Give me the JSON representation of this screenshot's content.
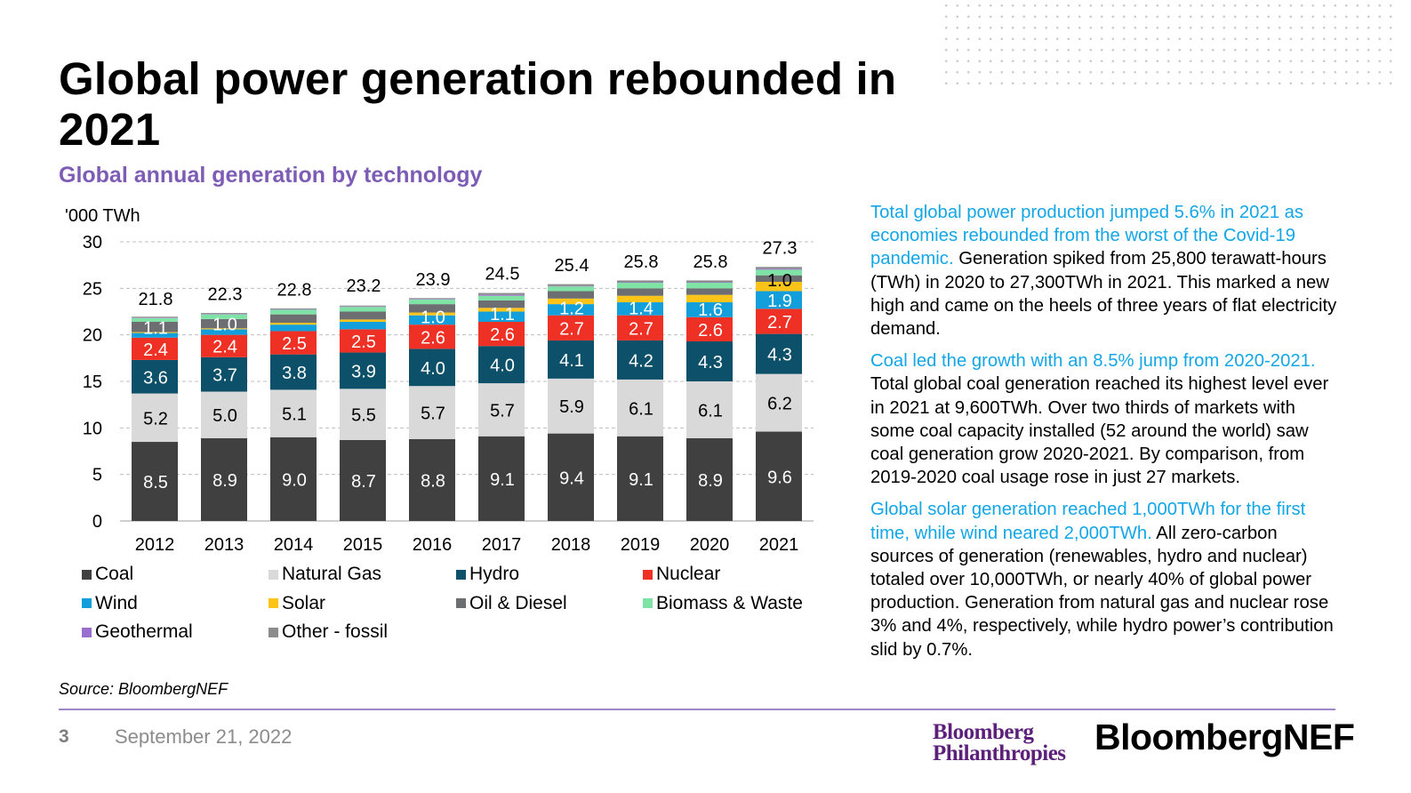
{
  "title": "Global power generation rebounded in 2021",
  "subtitle": "Global annual generation by technology",
  "source": "Source: BloombergNEF",
  "footer": {
    "page_number": "3",
    "date": "September 21, 2022",
    "logo_left": "Bloomberg Philanthropies",
    "logo_right": "BloombergNEF"
  },
  "paragraphs": [
    {
      "highlight": "Total global power production jumped 5.6% in 2021 as economies rebounded from the worst of the Covid-19 pandemic.",
      "body": " Generation spiked from 25,800 terawatt-hours (TWh) in 2020 to 27,300TWh in 2021. This marked a new high and came on the heels of three years of flat electricity demand."
    },
    {
      "highlight": "Coal led the growth with an 8.5% jump from 2020-2021.",
      "body": " Total global coal generation reached its highest level ever in 2021 at 9,600TWh. Over two thirds of markets with some coal capacity installed (52 around the world) saw coal generation grow 2020-2021. By comparison, from 2019-2020 coal usage rose in just 27 markets."
    },
    {
      "highlight": "Global solar generation reached 1,000TWh for the first time, while wind neared 2,000TWh.",
      "body": " All zero-carbon sources of generation (renewables, hydro and nuclear) totaled over 10,000TWh, or nearly 40% of global power production. Generation from natural gas and nuclear rose 3% and 4%, respectively, while hydro power’s contribution slid by 0.7%."
    }
  ],
  "chart_data": {
    "type": "bar",
    "stacked": true,
    "title": "Global annual generation by technology",
    "ylabel": "'000 TWh",
    "ylim": [
      0,
      30
    ],
    "yticks": [
      0,
      5,
      10,
      15,
      20,
      25,
      30
    ],
    "grid": true,
    "legend_placement": "bottom",
    "categories": [
      "2012",
      "2013",
      "2014",
      "2015",
      "2016",
      "2017",
      "2018",
      "2019",
      "2020",
      "2021"
    ],
    "totals": [
      21.8,
      22.3,
      22.8,
      23.2,
      23.9,
      24.5,
      25.4,
      25.8,
      25.8,
      27.3
    ],
    "series": [
      {
        "name": "Coal",
        "color": "#404040",
        "label_color": "#ffffff",
        "values": [
          8.5,
          8.9,
          9.0,
          8.7,
          8.8,
          9.1,
          9.4,
          9.1,
          8.9,
          9.6
        ]
      },
      {
        "name": "Natural Gas",
        "color": "#d9d9d9",
        "label_color": "#000000",
        "values": [
          5.2,
          5.0,
          5.1,
          5.5,
          5.7,
          5.7,
          5.9,
          6.1,
          6.1,
          6.2
        ]
      },
      {
        "name": "Hydro",
        "color": "#0c5069",
        "label_color": "#ffffff",
        "values": [
          3.6,
          3.7,
          3.8,
          3.9,
          4.0,
          4.0,
          4.1,
          4.2,
          4.3,
          4.3
        ]
      },
      {
        "name": "Nuclear",
        "color": "#ee3124",
        "label_color": "#ffffff",
        "values": [
          2.4,
          2.4,
          2.5,
          2.5,
          2.6,
          2.6,
          2.7,
          2.7,
          2.6,
          2.7
        ]
      },
      {
        "name": "Wind",
        "color": "#139fdc",
        "label_color": "#ffffff",
        "values": [
          0.5,
          0.6,
          0.7,
          0.8,
          1.0,
          1.1,
          1.2,
          1.4,
          1.6,
          1.9
        ]
      },
      {
        "name": "Solar",
        "color": "#fcc419",
        "label_color": "#000000",
        "values": [
          0.1,
          0.1,
          0.2,
          0.25,
          0.3,
          0.4,
          0.6,
          0.7,
          0.8,
          1.0
        ]
      },
      {
        "name": "Oil & Diesel",
        "color": "#6d6e71",
        "label_color": "#ffffff",
        "values": [
          1.1,
          1.0,
          0.9,
          0.85,
          0.9,
          0.8,
          0.8,
          0.8,
          0.7,
          0.7
        ]
      },
      {
        "name": "Biomass & Waste",
        "color": "#7fe3a6",
        "label_color": "#000000",
        "values": [
          0.4,
          0.5,
          0.5,
          0.5,
          0.5,
          0.5,
          0.5,
          0.6,
          0.6,
          0.6
        ]
      },
      {
        "name": "Geothermal",
        "color": "#9b6fd0",
        "label_color": "#000000",
        "values": [
          0.05,
          0.05,
          0.05,
          0.05,
          0.05,
          0.1,
          0.05,
          0.05,
          0.05,
          0.1
        ]
      },
      {
        "name": "Other - fossil",
        "color": "#8c8c8c",
        "label_color": "#000000",
        "values": [
          0.1,
          0.1,
          0.1,
          0.1,
          0.1,
          0.2,
          0.2,
          0.2,
          0.2,
          0.2
        ]
      }
    ]
  }
}
